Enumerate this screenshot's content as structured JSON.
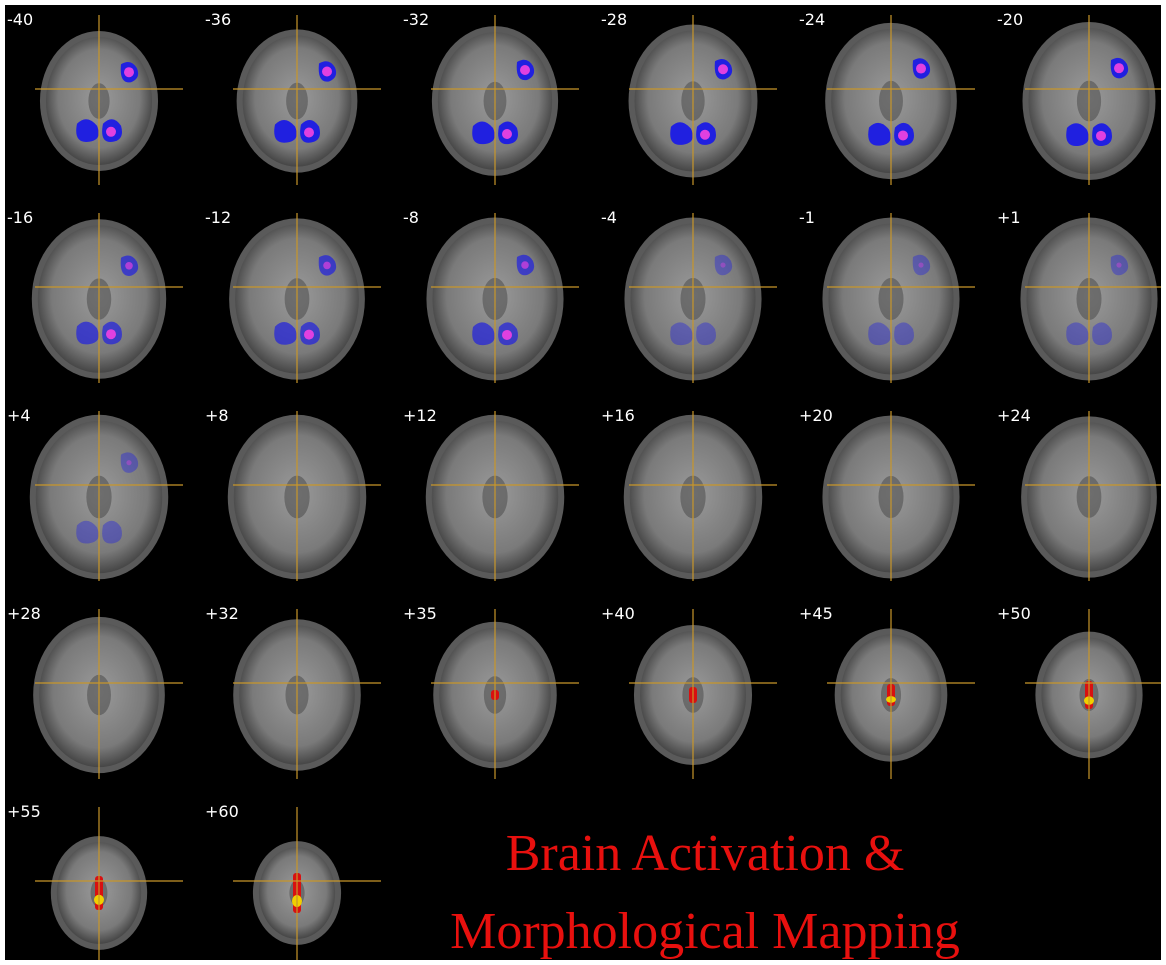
{
  "viewer": {
    "crosshair_color": "#c8962a",
    "background_color": "#000000",
    "slices": [
      {
        "label": "-40",
        "overlay": "blue"
      },
      {
        "label": "-36",
        "overlay": "blue"
      },
      {
        "label": "-32",
        "overlay": "blue"
      },
      {
        "label": "-28",
        "overlay": "blue"
      },
      {
        "label": "-24",
        "overlay": "blue"
      },
      {
        "label": "-20",
        "overlay": "blue"
      },
      {
        "label": "-16",
        "overlay": "blue"
      },
      {
        "label": "-12",
        "overlay": "blue"
      },
      {
        "label": "-8",
        "overlay": "blue"
      },
      {
        "label": "-4",
        "overlay": "blue"
      },
      {
        "label": "-1",
        "overlay": "blue"
      },
      {
        "label": "+1",
        "overlay": "blue"
      },
      {
        "label": "+4",
        "overlay": "blue"
      },
      {
        "label": "+8",
        "overlay": "none"
      },
      {
        "label": "+12",
        "overlay": "none"
      },
      {
        "label": "+16",
        "overlay": "none"
      },
      {
        "label": "+20",
        "overlay": "none"
      },
      {
        "label": "+24",
        "overlay": "none"
      },
      {
        "label": "+28",
        "overlay": "none"
      },
      {
        "label": "+32",
        "overlay": "none"
      },
      {
        "label": "+35",
        "overlay": "red"
      },
      {
        "label": "+40",
        "overlay": "red"
      },
      {
        "label": "+45",
        "overlay": "red"
      },
      {
        "label": "+50",
        "overlay": "red"
      },
      {
        "label": "+55",
        "overlay": "red"
      },
      {
        "label": "+60",
        "overlay": "red"
      }
    ]
  },
  "caption": {
    "line1": "Brain Activation &",
    "line2": "Morphological Mapping",
    "color": "#e8100e"
  }
}
